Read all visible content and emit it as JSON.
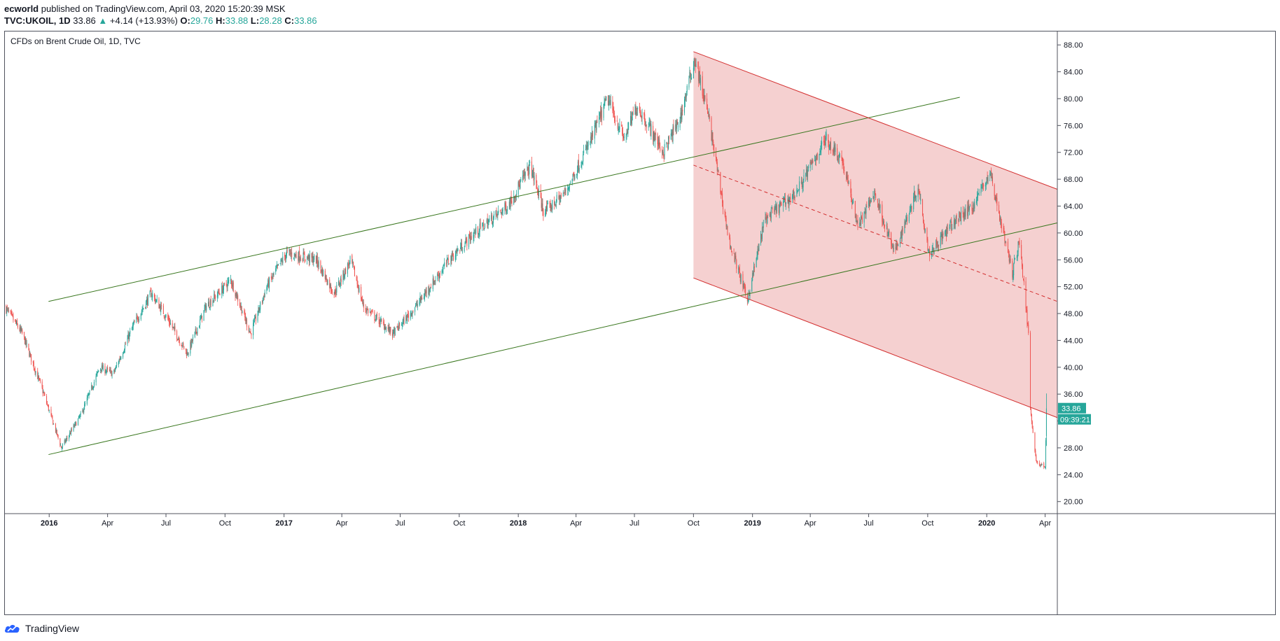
{
  "header": {
    "author": "ecworld",
    "published": "published on TradingView.com, April 03, 2020 15:20:39 MSK",
    "symbol": "TVC:UKOIL, 1D",
    "last": "33.86",
    "change_arrow": "▲",
    "change": "+4.14 (+13.93%)",
    "o_label": "O:",
    "o_value": "29.76",
    "h_label": "H:",
    "h_value": "33.88",
    "l_label": "L:",
    "l_value": "28.28",
    "c_label": "C:",
    "c_value": "33.86"
  },
  "footer": {
    "brand": "TradingView",
    "logo_icon": "tradingview-cloud-icon"
  },
  "colors": {
    "up": "#26a69a",
    "down": "#ef5350",
    "channel_green": "#38761d",
    "channel_red": "#d32f2f",
    "channel_fill": "#efb3b3",
    "price_label": "#26a69a"
  },
  "chart_data": {
    "type": "candlestick",
    "title": "CFDs on Brent Crude Oil, 1D, TVC",
    "y_axis": {
      "position": "right",
      "ylim": [
        18.2,
        90.0
      ],
      "ticks": [
        "20.00",
        "24.00",
        "28.00",
        "32.00",
        "36.00",
        "40.00",
        "44.00",
        "48.00",
        "52.00",
        "56.00",
        "60.00",
        "64.00",
        "68.00",
        "72.00",
        "76.00",
        "80.00",
        "84.00",
        "88.00"
      ]
    },
    "x_axis": {
      "range": [
        "2015-10-24",
        "2020-04-20"
      ],
      "ticks": [
        {
          "date": "2016-01-01",
          "label": "2016",
          "bold": true
        },
        {
          "date": "2016-04-01",
          "label": "Apr"
        },
        {
          "date": "2016-07-01",
          "label": "Jul"
        },
        {
          "date": "2016-10-01",
          "label": "Oct"
        },
        {
          "date": "2017-01-01",
          "label": "2017",
          "bold": true
        },
        {
          "date": "2017-04-01",
          "label": "Apr"
        },
        {
          "date": "2017-07-01",
          "label": "Jul"
        },
        {
          "date": "2017-10-01",
          "label": "Oct"
        },
        {
          "date": "2018-01-01",
          "label": "2018",
          "bold": true
        },
        {
          "date": "2018-04-01",
          "label": "Apr"
        },
        {
          "date": "2018-07-01",
          "label": "Jul"
        },
        {
          "date": "2018-10-01",
          "label": "Oct"
        },
        {
          "date": "2019-01-01",
          "label": "2019",
          "bold": true
        },
        {
          "date": "2019-04-01",
          "label": "Apr"
        },
        {
          "date": "2019-07-01",
          "label": "Jul"
        },
        {
          "date": "2019-10-01",
          "label": "Oct"
        },
        {
          "date": "2020-01-01",
          "label": "2020",
          "bold": true
        },
        {
          "date": "2020-04-01",
          "label": "Apr"
        }
      ]
    },
    "price_path": [
      [
        "2015-10-24",
        49
      ],
      [
        "2015-11-20",
        45
      ],
      [
        "2015-12-20",
        37
      ],
      [
        "2016-01-20",
        28
      ],
      [
        "2016-02-20",
        33
      ],
      [
        "2016-03-20",
        40
      ],
      [
        "2016-04-10",
        39
      ],
      [
        "2016-05-10",
        46
      ],
      [
        "2016-06-08",
        51
      ],
      [
        "2016-07-05",
        47
      ],
      [
        "2016-08-03",
        42
      ],
      [
        "2016-09-01",
        49
      ],
      [
        "2016-10-10",
        53
      ],
      [
        "2016-11-10",
        45
      ],
      [
        "2016-12-05",
        52
      ],
      [
        "2017-01-05",
        57
      ],
      [
        "2017-02-20",
        56
      ],
      [
        "2017-03-20",
        51
      ],
      [
        "2017-04-15",
        56
      ],
      [
        "2017-05-05",
        49
      ],
      [
        "2017-06-20",
        45
      ],
      [
        "2017-07-25",
        49
      ],
      [
        "2017-09-15",
        56
      ],
      [
        "2017-10-25",
        60
      ],
      [
        "2017-12-15",
        64
      ],
      [
        "2018-01-20",
        70
      ],
      [
        "2018-02-10",
        63
      ],
      [
        "2018-03-15",
        66
      ],
      [
        "2018-04-25",
        74
      ],
      [
        "2018-05-20",
        80
      ],
      [
        "2018-06-15",
        74
      ],
      [
        "2018-07-05",
        79
      ],
      [
        "2018-08-15",
        72
      ],
      [
        "2018-09-10",
        77
      ],
      [
        "2018-10-03",
        86
      ],
      [
        "2018-10-25",
        77
      ],
      [
        "2018-11-25",
        59
      ],
      [
        "2018-12-24",
        50
      ],
      [
        "2019-01-20",
        62
      ],
      [
        "2019-03-10",
        66
      ],
      [
        "2019-04-25",
        74
      ],
      [
        "2019-05-20",
        71
      ],
      [
        "2019-06-15",
        61
      ],
      [
        "2019-07-10",
        66
      ],
      [
        "2019-08-10",
        57
      ],
      [
        "2019-09-16",
        67
      ],
      [
        "2019-10-03",
        57
      ],
      [
        "2019-11-15",
        62
      ],
      [
        "2019-12-10",
        64
      ],
      [
        "2020-01-06",
        69
      ],
      [
        "2020-02-10",
        54
      ],
      [
        "2020-02-21",
        59
      ],
      [
        "2020-03-01",
        50
      ],
      [
        "2020-03-06",
        45
      ],
      [
        "2020-03-09",
        34
      ],
      [
        "2020-03-18",
        26
      ],
      [
        "2020-04-01",
        25
      ],
      [
        "2020-04-03",
        33.86
      ]
    ],
    "channels": [
      {
        "name": "green-upper",
        "color": "green",
        "points": [
          [
            "2015-12-31",
            49.8
          ],
          [
            "2019-11-20",
            80.2
          ]
        ]
      },
      {
        "name": "green-lower",
        "color": "green",
        "points": [
          [
            "2015-12-31",
            27.0
          ],
          [
            "2020-04-20",
            61.5
          ]
        ]
      },
      {
        "name": "red-upper",
        "color": "red",
        "points": [
          [
            "2018-10-01",
            87.0
          ],
          [
            "2020-04-20",
            66.5
          ]
        ]
      },
      {
        "name": "red-lower",
        "color": "red",
        "points": [
          [
            "2018-10-01",
            53.3
          ],
          [
            "2020-04-20",
            32.5
          ]
        ]
      },
      {
        "name": "red-mid",
        "color": "red",
        "dashed": true,
        "points": [
          [
            "2018-10-01",
            70.1
          ],
          [
            "2020-04-20",
            49.8
          ]
        ]
      }
    ],
    "last_price": {
      "value": "33.86",
      "countdown": "09:39:21"
    }
  }
}
